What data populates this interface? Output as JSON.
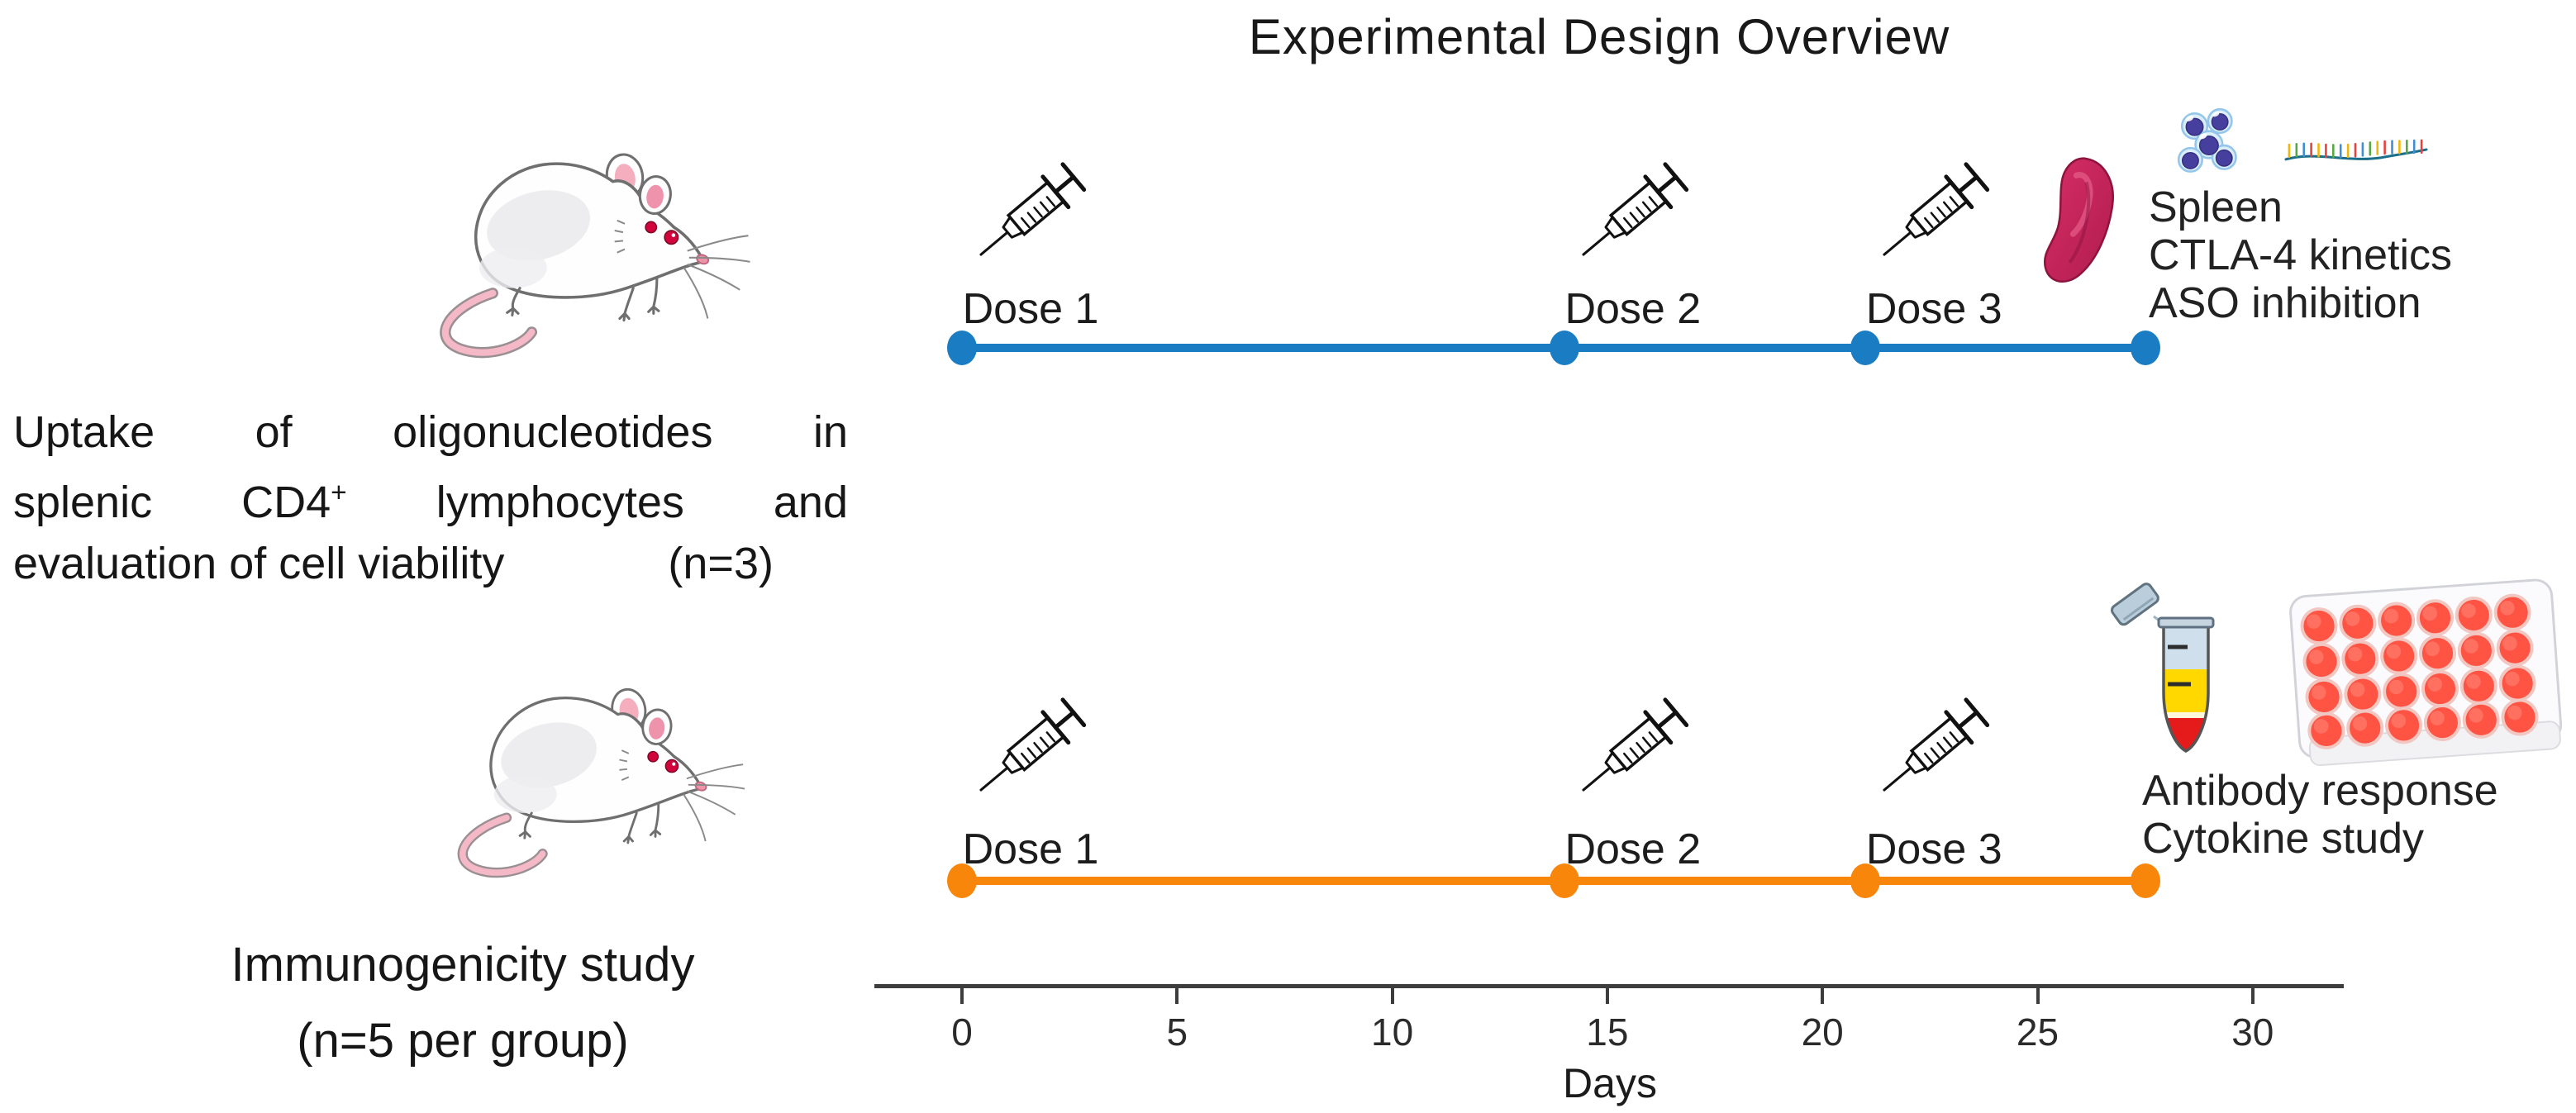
{
  "title": "Experimental Design Overview",
  "colors": {
    "timeline_blue": "#1a7cc2",
    "timeline_orange": "#f8860b",
    "axis": "#3d3d3d",
    "spleen": "#cc2256",
    "cell_nucleus": "#473f9e",
    "tube_yellow": "#ffd800",
    "tube_red": "#e51a1a",
    "well_media": "#ff5343"
  },
  "groups": [
    {
      "name": "uptake-study",
      "description": {
        "line1": "Uptake of oligonucleotides in",
        "line2_pre_sup": "splenic CD4",
        "line2_sup": "+",
        "line2_post_sup": "lymphocytes and",
        "line3": "evaluation of cell viability",
        "sample_size": "(n=3)"
      },
      "timeline_color": "#1a7cc2",
      "doses": [
        {
          "label": "Dose 1",
          "day": 0
        },
        {
          "label": "Dose 2",
          "day": 14
        },
        {
          "label": "Dose 3",
          "day": 21
        }
      ],
      "endpoint_day": 27.5,
      "outcomes": [
        "Spleen",
        "CTLA-4 kinetics",
        "ASO inhibition"
      ],
      "endpoint_icons": [
        "spleen-icon",
        "lymphocyte-cluster-icon",
        "oligonucleotide-icon"
      ]
    },
    {
      "name": "immunogenicity-study",
      "description": {
        "line1": "Immunogenicity study",
        "line2": "(n=5 per group)"
      },
      "timeline_color": "#f8860b",
      "doses": [
        {
          "label": "Dose 1",
          "day": 0
        },
        {
          "label": "Dose 2",
          "day": 14
        },
        {
          "label": "Dose 3",
          "day": 21
        }
      ],
      "endpoint_day": 27.5,
      "outcomes": [
        "Antibody response",
        "Cytokine study"
      ],
      "endpoint_icons": [
        "centrifuge-tube-icon",
        "well-plate-icon"
      ]
    }
  ],
  "axis": {
    "label": "Days",
    "tick_days": [
      0,
      5,
      10,
      15,
      20,
      25,
      30
    ]
  },
  "icons": {
    "subject": "mouse-icon",
    "dose": "syringe-icon"
  }
}
